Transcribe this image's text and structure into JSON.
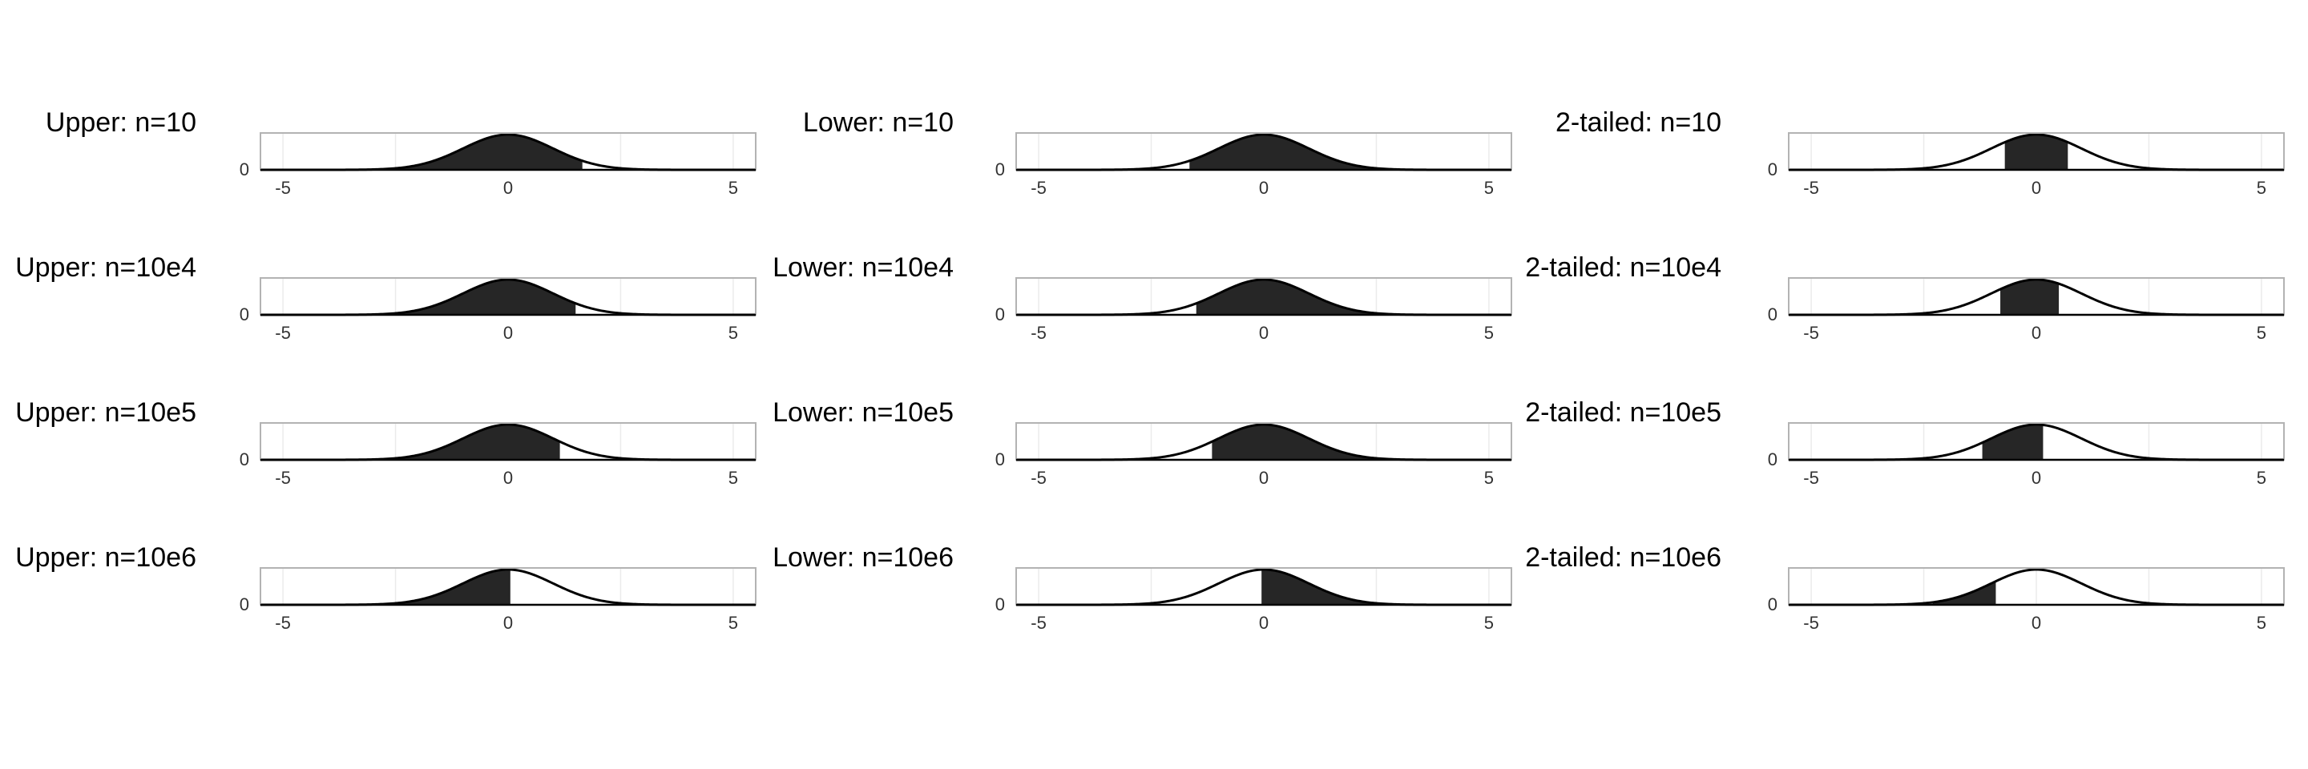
{
  "chart_data": [
    {
      "type": "area",
      "title": "Upper: n=10",
      "shaded_x": [
        -5.5,
        1.65
      ],
      "xticks": [
        -5,
        0,
        5
      ],
      "yticks": [
        0
      ],
      "xlim": [
        -5.5,
        5.5
      ]
    },
    {
      "type": "area",
      "title": "Lower: n=10",
      "shaded_x": [
        -1.65,
        5.5
      ],
      "xticks": [
        -5,
        0,
        5
      ],
      "yticks": [
        0
      ],
      "xlim": [
        -5.5,
        5.5
      ]
    },
    {
      "type": "area",
      "title": "2-tailed: n=10",
      "shaded_x": [
        -0.7,
        0.7
      ],
      "xticks": [
        -5,
        0,
        5
      ],
      "yticks": [
        0
      ],
      "xlim": [
        -5.5,
        5.5
      ]
    },
    {
      "type": "area",
      "title": "Upper: n=10e4",
      "shaded_x": [
        -5.5,
        1.5
      ],
      "xticks": [
        -5,
        0,
        5
      ],
      "yticks": [
        0
      ],
      "xlim": [
        -5.5,
        5.5
      ]
    },
    {
      "type": "area",
      "title": "Lower: n=10e4",
      "shaded_x": [
        -1.5,
        5.5
      ],
      "xticks": [
        -5,
        0,
        5
      ],
      "yticks": [
        0
      ],
      "xlim": [
        -5.5,
        5.5
      ]
    },
    {
      "type": "area",
      "title": "2-tailed: n=10e4",
      "shaded_x": [
        -0.8,
        0.5
      ],
      "xticks": [
        -5,
        0,
        5
      ],
      "yticks": [
        0
      ],
      "xlim": [
        -5.5,
        5.5
      ]
    },
    {
      "type": "area",
      "title": "Upper: n=10e5",
      "shaded_x": [
        -5.5,
        1.15
      ],
      "xticks": [
        -5,
        0,
        5
      ],
      "yticks": [
        0
      ],
      "xlim": [
        -5.5,
        5.5
      ]
    },
    {
      "type": "area",
      "title": "Lower: n=10e5",
      "shaded_x": [
        -1.15,
        5.5
      ],
      "xticks": [
        -5,
        0,
        5
      ],
      "yticks": [
        0
      ],
      "xlim": [
        -5.5,
        5.5
      ]
    },
    {
      "type": "area",
      "title": "2-tailed: n=10e5",
      "shaded_x": [
        -1.2,
        0.15
      ],
      "xticks": [
        -5,
        0,
        5
      ],
      "yticks": [
        0
      ],
      "xlim": [
        -5.5,
        5.5
      ]
    },
    {
      "type": "area",
      "title": "Upper: n=10e6",
      "shaded_x": [
        -5.5,
        0.05
      ],
      "xticks": [
        -5,
        0,
        5
      ],
      "yticks": [
        0
      ],
      "xlim": [
        -5.5,
        5.5
      ]
    },
    {
      "type": "area",
      "title": "Lower: n=10e6",
      "shaded_x": [
        -0.05,
        5.5
      ],
      "xticks": [
        -5,
        0,
        5
      ],
      "yticks": [
        0
      ],
      "xlim": [
        -5.5,
        5.5
      ]
    },
    {
      "type": "area",
      "title": "2-tailed: n=10e6",
      "shaded_x": [
        -2.3,
        -0.9
      ],
      "xticks": [
        -5,
        0,
        5
      ],
      "yticks": [
        0
      ],
      "xlim": [
        -5.5,
        5.5
      ]
    }
  ]
}
